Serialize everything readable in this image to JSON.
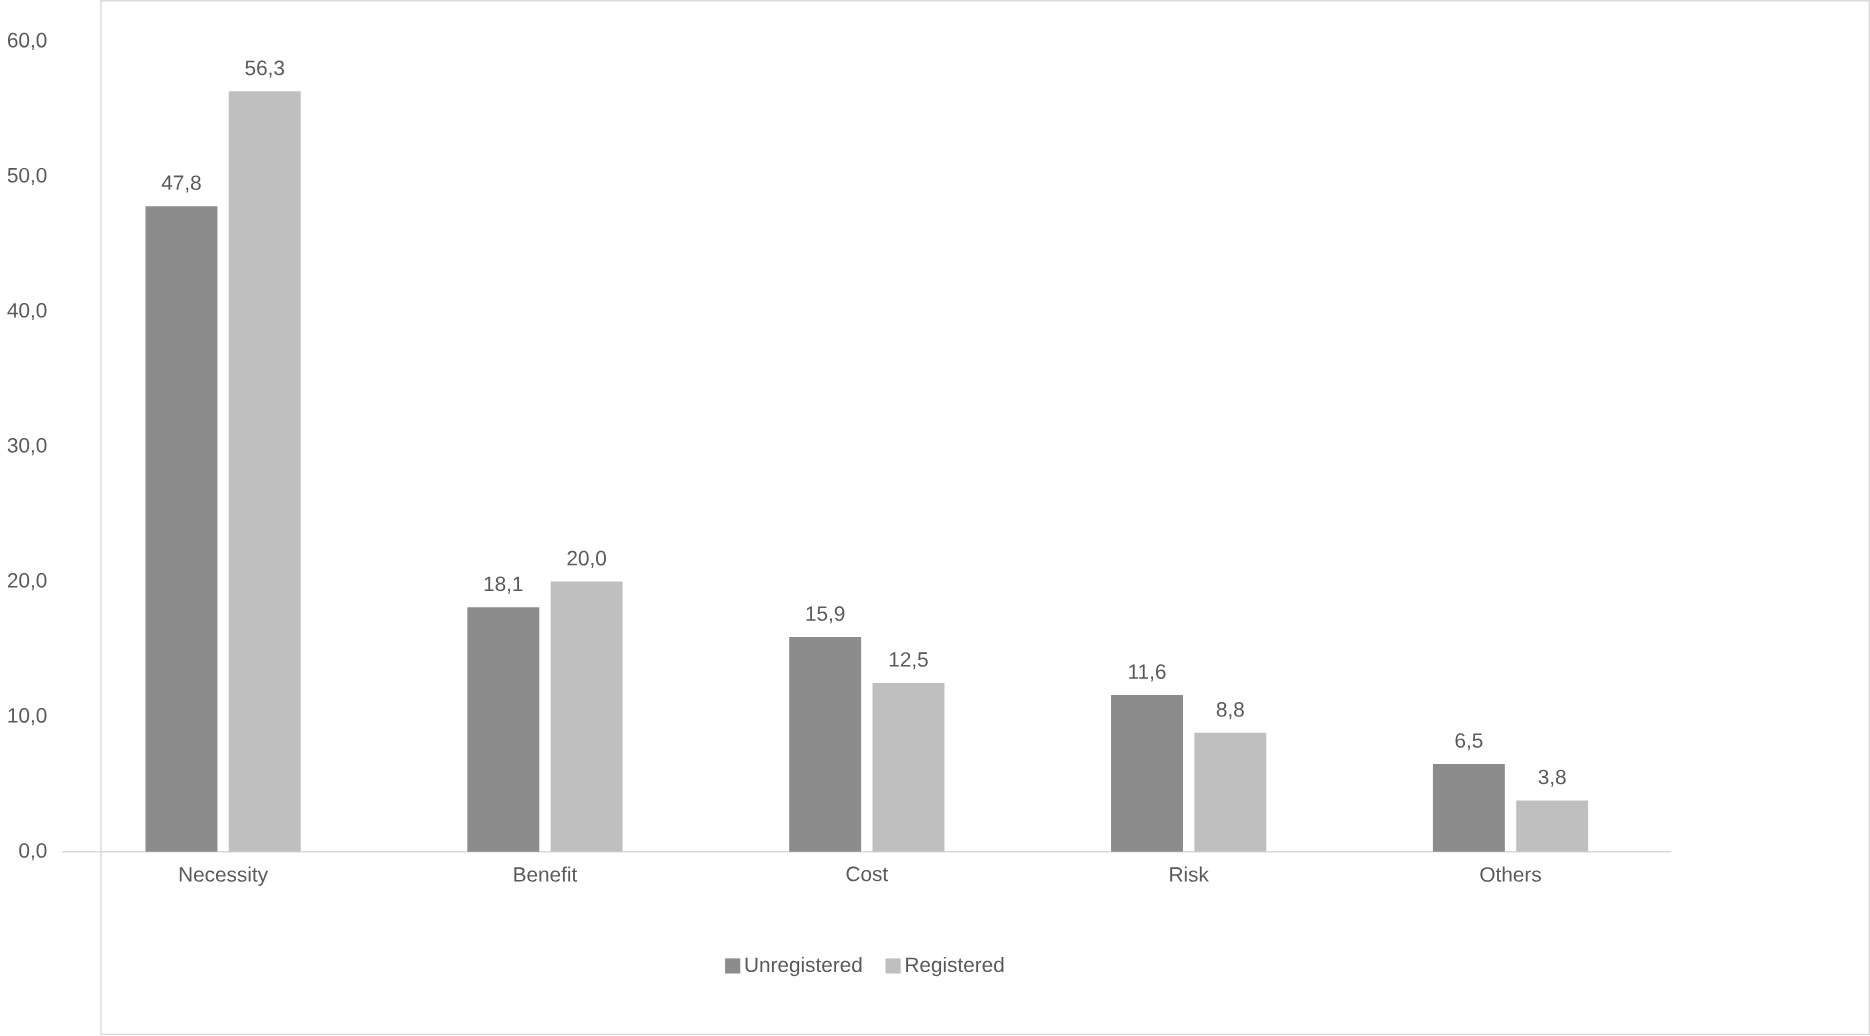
{
  "chart_data": {
    "type": "bar",
    "categories": [
      "Necessity",
      "Benefit",
      "Cost",
      "Risk",
      "Others"
    ],
    "series": [
      {
        "name": "Unregistered",
        "color": "#8c8c8c",
        "values": [
          47.8,
          18.1,
          15.9,
          11.6,
          6.5
        ],
        "value_labels": [
          "47,8",
          "18,1",
          "15,9",
          "11,6",
          "6,5"
        ]
      },
      {
        "name": "Registered",
        "color": "#bfbfbf",
        "values": [
          56.3,
          20.0,
          12.5,
          8.8,
          3.8
        ],
        "value_labels": [
          "56,3",
          "20,0",
          "12,5",
          "8,8",
          "3,8"
        ]
      }
    ],
    "ylim": [
      0,
      60
    ],
    "yticks": [
      {
        "value": 0,
        "label": "0,0"
      },
      {
        "value": 10,
        "label": "10,0"
      },
      {
        "value": 20,
        "label": "20,0"
      },
      {
        "value": 30,
        "label": "30,0"
      },
      {
        "value": 40,
        "label": "40,0"
      },
      {
        "value": 50,
        "label": "50,0"
      },
      {
        "value": 60,
        "label": "60,0"
      }
    ],
    "grid": false,
    "legend": "bottom"
  }
}
